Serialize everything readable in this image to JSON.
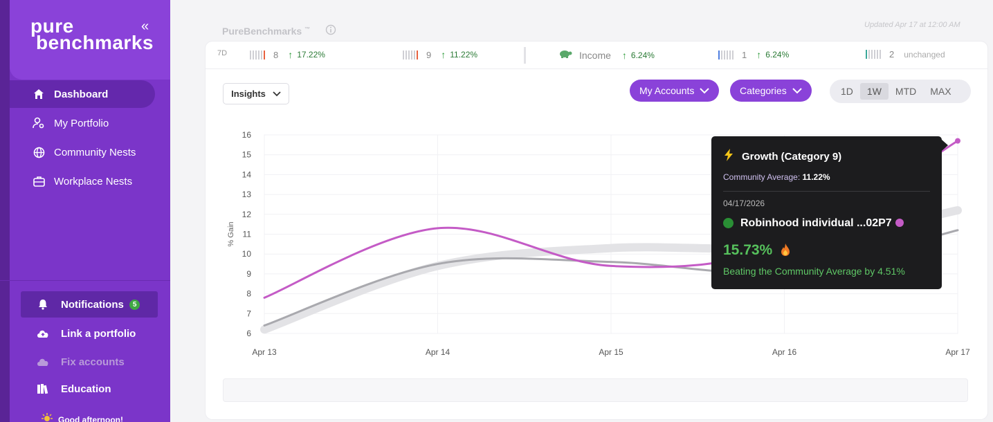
{
  "brand": {
    "line1": "pure",
    "line2": "benchmarks"
  },
  "sidebar": {
    "collapse_glyph": "«",
    "nav": [
      {
        "label": "Dashboard",
        "icon": "home-icon",
        "active": true
      },
      {
        "label": "My Portfolio",
        "icon": "user-gear-icon"
      },
      {
        "label": "Community Nests",
        "icon": "globe-icon"
      },
      {
        "label": "Workplace Nests",
        "icon": "briefcase-icon"
      }
    ],
    "bottom": [
      {
        "label": "Notifications",
        "icon": "bell-icon",
        "badge": "5"
      },
      {
        "label": "Link a portfolio",
        "icon": "cloud-upload-icon"
      },
      {
        "label": "Fix accounts",
        "icon": "cloud-icon"
      },
      {
        "label": "Education",
        "icon": "books-icon"
      }
    ],
    "greeting": "Good afternoon!"
  },
  "header": {
    "title": "PureBenchmarks",
    "trademark": "™",
    "updated": "Updated Apr 17 at 12:00 AM"
  },
  "ticker": {
    "period": "7D",
    "items": [
      {
        "label": "8",
        "change": "17.22%",
        "accent": "#e8613f"
      },
      {
        "label": "9",
        "change": "11.22%",
        "accent": "#e8613f"
      },
      {
        "label": "Income",
        "change": "6.24%",
        "accent": "#5aa86a"
      },
      {
        "label": "1",
        "change": "6.24%",
        "accent": "#4f7ee0"
      },
      {
        "label": "2",
        "change": "unchanged",
        "accent": "#3aa89a"
      }
    ]
  },
  "controls": {
    "insights": "Insights",
    "my_accounts": "My Accounts",
    "categories": "Categories",
    "ranges": [
      "1D",
      "1W",
      "MTD",
      "MAX"
    ],
    "selected_range": "1W"
  },
  "chart_data": {
    "type": "line",
    "ylabel": "% Gain",
    "ylim": [
      6,
      16
    ],
    "yticks": [
      6,
      7,
      8,
      9,
      10,
      11,
      12,
      13,
      14,
      15,
      16
    ],
    "categories": [
      "Apr 13",
      "Apr 14",
      "Apr 15",
      "Apr 16",
      "Apr 17"
    ],
    "series": [
      {
        "name": "Growth",
        "color": "#e3e3e6",
        "values": [
          6.2,
          9.4,
          10.3,
          10.4,
          12.2
        ]
      },
      {
        "name": "9",
        "color": "#a9a9ae",
        "values": [
          6.4,
          9.5,
          9.6,
          9.1,
          11.2
        ]
      },
      {
        "name": "26002P7",
        "color": "#c45bc6",
        "values": [
          7.8,
          11.3,
          9.4,
          10.4,
          15.7
        ]
      }
    ],
    "legend": {
      "position": "bottom",
      "category_label": "Category"
    }
  },
  "tooltip": {
    "title": "Growth (Category 9)",
    "avg_label": "Community Average:",
    "avg_value": "11.22%",
    "date": "04/17/2026",
    "account": "Robinhood individual ...02P7",
    "value": "15.73%",
    "beat": "Beating the Community Average by 4.51%"
  }
}
